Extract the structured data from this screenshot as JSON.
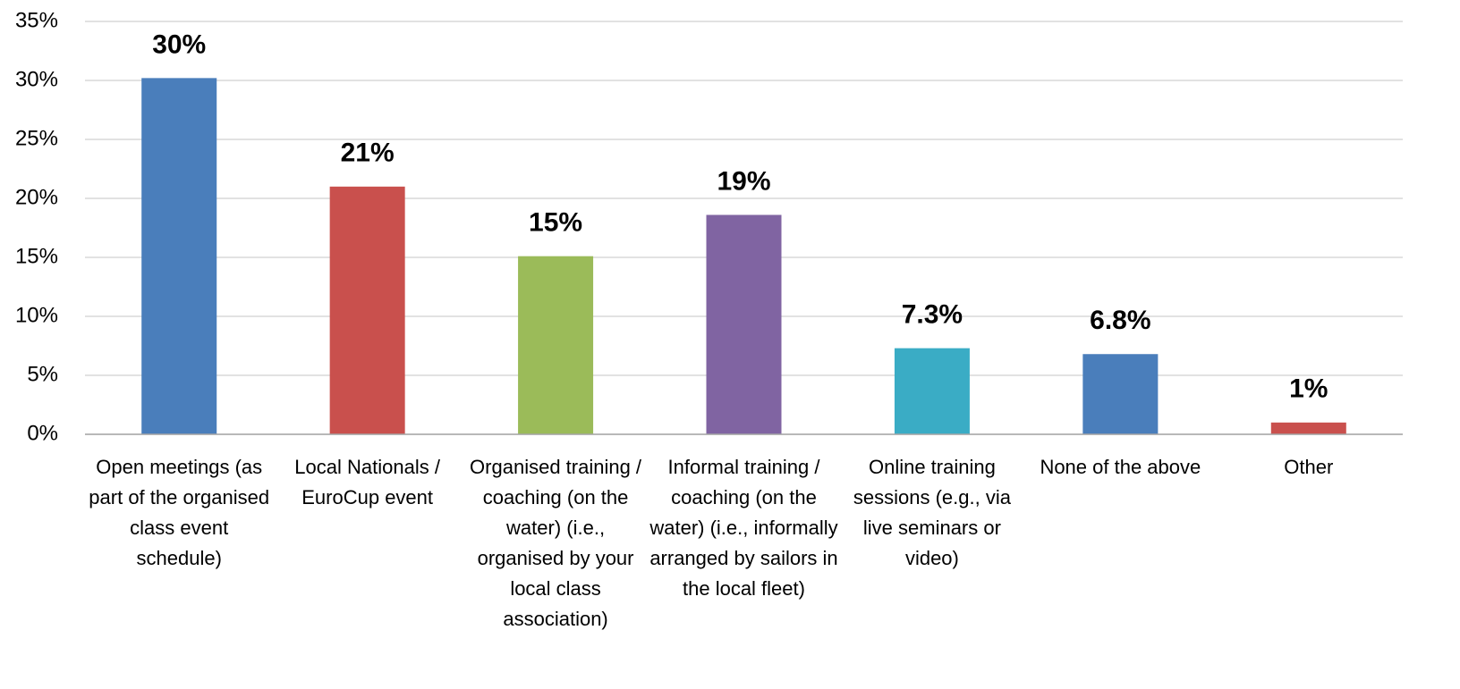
{
  "chart_data": {
    "type": "bar",
    "categories": [
      "Open meetings (as part of the organised class event schedule)",
      "Local Nationals / EuroCup event",
      "Organised training / coaching (on the water) (i.e., organised by your local class association)",
      "Informal training / coaching (on the water) (i.e., informally arranged by sailors in the local fleet)",
      "Online training sessions (e.g., via live seminars or video)",
      "None of the above",
      "Other"
    ],
    "values": [
      30.2,
      21.0,
      15.1,
      18.6,
      7.3,
      6.8,
      1.0
    ],
    "value_labels": [
      "30%",
      "21%",
      "15%",
      "19%",
      "7.3%",
      "6.8%",
      "1%"
    ],
    "colors": [
      "#4a7ebb",
      "#c9504d",
      "#9bbb59",
      "#8064a2",
      "#3aacc5",
      "#4a7ebb",
      "#c9504d"
    ],
    "ylim": [
      0,
      35
    ],
    "yticks": [
      {
        "value": 0,
        "label": "0%"
      },
      {
        "value": 5,
        "label": "5%"
      },
      {
        "value": 10,
        "label": "10%"
      },
      {
        "value": 15,
        "label": "15%"
      },
      {
        "value": 20,
        "label": "20%"
      },
      {
        "value": 25,
        "label": "25%"
      },
      {
        "value": 30,
        "label": "30%"
      },
      {
        "value": 35,
        "label": "35%"
      }
    ],
    "grid": true
  }
}
